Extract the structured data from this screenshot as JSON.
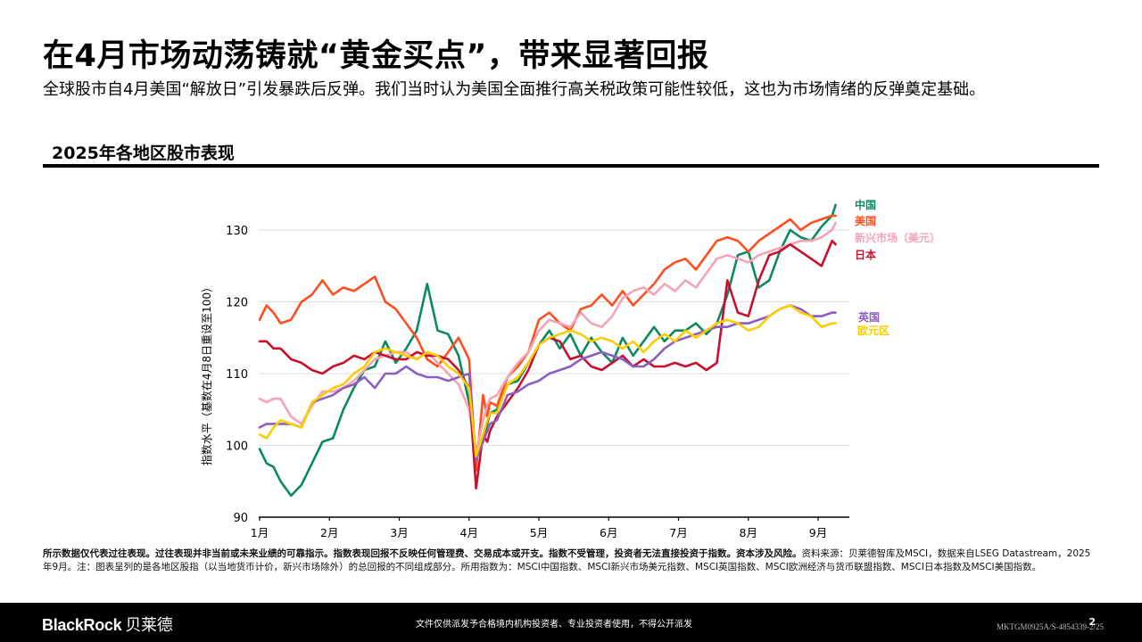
{
  "header": {
    "title": "在4月市场动荡铸就“黄金买点”，带来显著回报",
    "subtitle": "全球股市自4月美国“解放日”引发暴跌后反弹。我们当时认为美国全面推行高关税政策可能性较低，这也为市场情绪的反弹奠定基础。"
  },
  "chart_section": {
    "title": "2025年各地区股市表现"
  },
  "chart_data": {
    "type": "line",
    "title": "2025年各地区股市表现",
    "xlabel": "",
    "ylabel": "指数水平（基数在4月8日重设至100）",
    "ylim": [
      90,
      135
    ],
    "yticks": [
      90,
      100,
      110,
      120,
      130
    ],
    "xtick_labels": [
      "1月",
      "2月",
      "3月",
      "4月",
      "5月",
      "6月",
      "7月",
      "8月",
      "9月"
    ],
    "x_unit": "months since Jan 1 (0 = 1月, 8 = 9月)",
    "grid": "horizontal",
    "legend_position": "right, inline labels",
    "x": [
      0.0,
      0.1,
      0.2,
      0.3,
      0.45,
      0.6,
      0.75,
      0.9,
      1.05,
      1.2,
      1.35,
      1.5,
      1.65,
      1.8,
      1.95,
      2.1,
      2.25,
      2.4,
      2.55,
      2.7,
      2.85,
      3.0,
      3.1,
      3.2,
      3.26,
      3.3,
      3.4,
      3.55,
      3.7,
      3.85,
      4.0,
      4.15,
      4.3,
      4.45,
      4.6,
      4.75,
      4.9,
      5.05,
      5.2,
      5.35,
      5.5,
      5.65,
      5.8,
      5.95,
      6.1,
      6.25,
      6.4,
      6.55,
      6.7,
      6.85,
      7.0,
      7.15,
      7.3,
      7.45,
      7.6,
      7.75,
      7.9,
      8.05,
      8.2,
      8.25
    ],
    "series": [
      {
        "name": "中国",
        "color": "#0C8A5E",
        "values": [
          99.5,
          97.5,
          97.0,
          95.0,
          93.0,
          94.5,
          97.5,
          100.5,
          101.0,
          105.0,
          108.0,
          110.5,
          111.0,
          114.5,
          111.5,
          113.5,
          116.0,
          122.5,
          116.0,
          115.5,
          112.5,
          106.0,
          99.0,
          100.5,
          103.0,
          104.5,
          105.0,
          108.5,
          109.0,
          111.5,
          114.0,
          116.0,
          113.5,
          115.5,
          112.5,
          115.0,
          113.0,
          111.5,
          115.0,
          112.5,
          114.5,
          116.5,
          114.5,
          116.0,
          116.0,
          117.0,
          115.5,
          117.0,
          121.0,
          126.5,
          127.0,
          122.0,
          123.0,
          127.0,
          130.0,
          129.0,
          128.5,
          130.5,
          132.0,
          133.5
        ]
      },
      {
        "name": "美国",
        "color": "#FF4F1F",
        "values": [
          117.5,
          119.5,
          118.5,
          117.0,
          117.5,
          120.0,
          121.0,
          123.0,
          121.0,
          122.0,
          121.5,
          122.5,
          123.5,
          120.0,
          119.0,
          117.0,
          115.0,
          112.0,
          111.0,
          113.0,
          115.0,
          112.0,
          96.5,
          107.0,
          104.0,
          106.0,
          105.5,
          109.5,
          111.0,
          113.0,
          117.5,
          118.5,
          117.0,
          116.0,
          119.0,
          119.5,
          121.0,
          119.5,
          121.5,
          119.5,
          121.0,
          122.5,
          124.5,
          125.5,
          126.0,
          124.5,
          126.5,
          128.5,
          129.0,
          128.5,
          127.0,
          128.5,
          129.5,
          130.5,
          131.5,
          130.0,
          131.0,
          131.5,
          132.0,
          132.0
        ]
      },
      {
        "name": "新兴市场（美元）",
        "color": "#F5A3B5",
        "values": [
          106.5,
          106.0,
          106.5,
          106.5,
          104.0,
          103.0,
          105.5,
          107.5,
          107.5,
          108.0,
          109.0,
          110.5,
          112.0,
          112.5,
          113.0,
          113.0,
          112.0,
          113.0,
          111.5,
          110.0,
          108.5,
          105.0,
          99.0,
          103.5,
          105.5,
          106.5,
          107.0,
          109.5,
          111.5,
          113.0,
          116.0,
          117.5,
          117.0,
          116.5,
          118.5,
          117.0,
          116.5,
          118.0,
          120.5,
          121.5,
          122.0,
          121.0,
          122.5,
          121.5,
          123.0,
          122.0,
          124.0,
          126.0,
          126.5,
          126.0,
          125.5,
          126.5,
          127.0,
          127.5,
          128.0,
          128.5,
          128.5,
          129.0,
          130.0,
          131.0
        ]
      },
      {
        "name": "日本",
        "color": "#C8102E",
        "values": [
          114.5,
          114.5,
          113.5,
          113.5,
          112.0,
          111.5,
          110.5,
          110.0,
          111.0,
          111.5,
          112.5,
          112.0,
          113.0,
          112.5,
          112.0,
          112.0,
          113.0,
          112.5,
          112.5,
          112.0,
          110.5,
          108.0,
          94.0,
          101.5,
          100.5,
          102.0,
          104.0,
          106.0,
          108.0,
          110.5,
          114.0,
          115.0,
          114.5,
          112.0,
          112.5,
          111.0,
          110.5,
          111.5,
          112.5,
          111.0,
          112.0,
          111.0,
          111.0,
          111.5,
          111.0,
          111.5,
          110.5,
          111.5,
          123.0,
          118.5,
          118.0,
          123.0,
          126.5,
          127.0,
          128.0,
          127.0,
          126.0,
          125.0,
          128.5,
          128.0
        ]
      },
      {
        "name": "英国",
        "color": "#8B5FBF",
        "values": [
          102.5,
          103.0,
          103.0,
          103.0,
          103.0,
          102.5,
          106.0,
          106.5,
          107.0,
          108.0,
          108.5,
          109.5,
          108.0,
          110.0,
          110.0,
          111.0,
          110.0,
          109.5,
          109.5,
          109.0,
          109.5,
          110.0,
          98.0,
          100.5,
          102.0,
          103.0,
          103.5,
          107.0,
          107.5,
          108.5,
          109.0,
          110.0,
          110.5,
          111.0,
          112.0,
          112.5,
          113.0,
          112.5,
          112.0,
          111.0,
          111.0,
          112.0,
          113.5,
          114.5,
          115.0,
          115.5,
          116.0,
          116.5,
          116.5,
          117.0,
          117.0,
          117.5,
          118.0,
          119.0,
          119.5,
          119.0,
          118.0,
          118.0,
          118.5,
          118.5
        ]
      },
      {
        "name": "欧元区",
        "color": "#FFCC00",
        "values": [
          101.5,
          101.0,
          102.5,
          103.5,
          103.0,
          102.5,
          106.0,
          107.0,
          108.0,
          108.5,
          110.0,
          111.0,
          113.0,
          113.5,
          113.0,
          112.5,
          112.0,
          113.0,
          112.5,
          111.0,
          110.0,
          108.0,
          98.5,
          101.5,
          103.5,
          104.5,
          104.5,
          108.5,
          109.5,
          111.5,
          114.0,
          115.0,
          115.5,
          116.0,
          115.5,
          114.5,
          115.0,
          114.5,
          113.5,
          114.5,
          113.0,
          114.5,
          115.5,
          114.5,
          116.0,
          115.0,
          116.0,
          117.0,
          117.5,
          117.0,
          116.0,
          116.5,
          118.0,
          119.0,
          119.5,
          118.5,
          118.0,
          116.5,
          117.0,
          117.0
        ]
      }
    ]
  },
  "footnote": {
    "bold": "所示数据仅代表过往表现。过往表现并非当前或未来业绩的可靠指示。指数表现回报不反映任何管理费、交易成本或开支。指数不受管理，投资者无法直接投资于指数。资本涉及风险。",
    "normal": "资料来源：贝莱德智库及MSCI，数据来自LSEG Datastream，2025年9月。注：图表呈列的是各地区股指（以当地货币计价，新兴市场除外）的总回报的不同组成部分。所用指数为：MSCI中国指数、MSCI新兴市场美元指数、MSCI英国指数、MSCI欧洲经济与货币联盟指数、MSCI日本指数及MSCI美国指数。"
  },
  "footer": {
    "logo_en": "BlackRock",
    "logo_cn": "贝莱德",
    "notice": "文件仅供派发予合格境内机构投资者、专业投资者使用，不得公开派发",
    "code": "MKTGM0925A/S-4854339-2/25",
    "page_number": "2"
  }
}
